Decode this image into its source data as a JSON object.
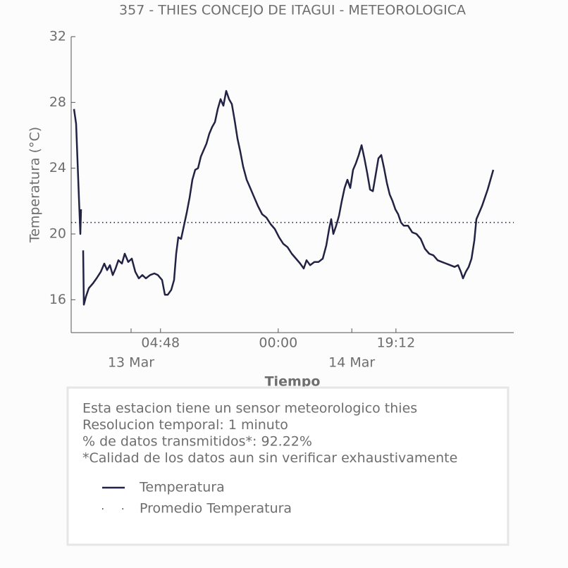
{
  "chart_data": {
    "type": "line",
    "title": "357 - THIES CONCEJO DE ITAGUI - METEOROLOGICA",
    "ylabel": "Temperatura (°C)",
    "xlabel": "Tiempo",
    "xlim": [
      -9.77,
      62.41
    ],
    "ylim": [
      14,
      32
    ],
    "yticks": [
      16,
      20,
      24,
      28,
      32
    ],
    "xticks": [
      {
        "value": 4.8,
        "label": "04:48"
      },
      {
        "value": 24,
        "label": "00:00"
      },
      {
        "value": 43.2,
        "label": "19:12"
      }
    ],
    "date_ticks": [
      {
        "value": 0,
        "label": "13 Mar"
      },
      {
        "value": 36,
        "label": "14 Mar"
      }
    ],
    "series": [
      {
        "name": "Temperatura",
        "color": "#222244",
        "x": [
          -9.31,
          -8.97,
          -8.51,
          -8.28,
          -8.16,
          -8.05,
          -7.82,
          -7.7,
          -7.36,
          -6.9,
          -6.21,
          -5.63,
          -4.94,
          -4.37,
          -3.91,
          -3.45,
          -2.99,
          -2.53,
          -2.07,
          -1.49,
          -1.03,
          -0.46,
          0.11,
          0.69,
          1.26,
          1.84,
          2.41,
          3.1,
          3.79,
          4.37,
          5.06,
          5.52,
          5.98,
          6.55,
          7.01,
          7.36,
          7.7,
          8.16,
          8.62,
          9.08,
          9.54,
          10.0,
          10.46,
          10.92,
          11.38,
          11.84,
          12.3,
          12.76,
          13.22,
          13.68,
          14.14,
          14.6,
          15.06,
          15.52,
          15.98,
          16.44,
          16.9,
          17.36,
          17.82,
          18.28,
          18.85,
          19.43,
          20.0,
          20.69,
          21.38,
          22.07,
          22.76,
          23.45,
          24.14,
          24.83,
          25.52,
          26.21,
          26.9,
          27.59,
          28.16,
          28.62,
          29.2,
          29.89,
          30.57,
          31.26,
          31.84,
          32.3,
          32.64,
          32.99,
          33.45,
          33.91,
          34.37,
          34.83,
          35.29,
          35.75,
          36.21,
          36.67,
          37.13,
          37.59,
          38.05,
          38.51,
          38.97,
          39.43,
          39.89,
          40.34,
          40.8,
          41.26,
          41.72,
          42.18,
          42.64,
          43.1,
          43.56,
          44.02,
          44.48,
          45.17,
          45.86,
          46.55,
          47.24,
          47.93,
          48.62,
          49.31,
          50.0,
          50.69,
          51.38,
          52.07,
          52.76,
          53.33,
          53.79,
          54.14,
          54.6,
          55.06,
          55.52,
          55.98,
          56.32,
          56.78,
          57.24,
          57.7,
          58.16,
          58.62,
          59.08
        ],
        "values": [
          27.6,
          26.7,
          22.2,
          20.0,
          21.5,
          null,
          19.0,
          15.7,
          16.2,
          16.7,
          17.0,
          17.3,
          17.7,
          18.2,
          17.8,
          18.1,
          17.5,
          17.9,
          18.4,
          18.2,
          18.8,
          18.3,
          18.5,
          17.7,
          17.3,
          17.5,
          17.3,
          17.5,
          17.6,
          17.5,
          17.2,
          16.3,
          16.3,
          16.6,
          17.2,
          18.8,
          19.8,
          19.7,
          20.5,
          21.3,
          22.2,
          23.3,
          23.9,
          24.0,
          24.7,
          25.1,
          25.5,
          26.1,
          26.5,
          26.8,
          27.6,
          28.2,
          27.8,
          28.7,
          28.2,
          27.9,
          26.9,
          25.8,
          25.0,
          24.1,
          23.3,
          22.8,
          22.3,
          21.7,
          21.2,
          21.0,
          20.6,
          20.3,
          19.8,
          19.4,
          19.2,
          18.8,
          18.5,
          18.2,
          17.9,
          18.4,
          18.1,
          18.3,
          18.3,
          18.5,
          19.3,
          20.3,
          20.9,
          20.0,
          20.5,
          21.1,
          22.0,
          22.8,
          23.3,
          22.8,
          23.9,
          24.3,
          24.8,
          25.4,
          24.6,
          23.7,
          22.7,
          22.6,
          23.6,
          24.6,
          24.8,
          24.0,
          23.1,
          22.4,
          22.0,
          21.5,
          21.2,
          20.7,
          20.5,
          20.5,
          20.1,
          20.0,
          19.7,
          19.1,
          18.8,
          18.7,
          18.4,
          18.3,
          18.2,
          18.1,
          18.0,
          18.1,
          17.7,
          17.3,
          17.7,
          18.0,
          18.5,
          19.6,
          20.9,
          21.3,
          21.7,
          22.2,
          22.7,
          23.3,
          23.9
        ]
      }
    ],
    "hlines": [
      {
        "name": "Promedio Temperatura",
        "value": 20.7,
        "color": "#222244"
      }
    ],
    "notes": [
      "Esta estacion tiene un sensor meteorologico thies",
      "Resolucion temporal: 1 minuto",
      "% de datos transmitidos*: 92.22%",
      "*Calidad de los datos aun sin verificar exhaustivamente"
    ]
  }
}
